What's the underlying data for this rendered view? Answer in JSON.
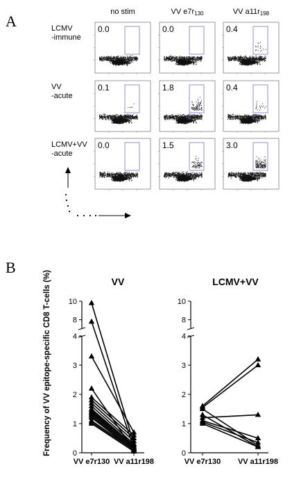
{
  "panel_a_letter": "A",
  "panel_b_letter": "B",
  "panel_a": {
    "columns": [
      {
        "text": "no stim",
        "sub": ""
      },
      {
        "text": "VV e7r",
        "sub": "130"
      },
      {
        "text": "VV a11r",
        "sub": "198"
      }
    ],
    "rows": [
      {
        "label_lines": [
          "LCMV",
          "-immune"
        ],
        "values": [
          "0.0",
          "0.0",
          "0.4"
        ]
      },
      {
        "label_lines": [
          "VV",
          "-acute"
        ],
        "values": [
          "0.1",
          "1.8",
          "0.4"
        ]
      },
      {
        "label_lines": [
          "LCMV+VV",
          "-acute"
        ],
        "values": [
          "0.0",
          "1.5",
          "3.0"
        ]
      }
    ],
    "gate_color": "#7b72c4"
  },
  "chart_data": [
    {
      "type": "line",
      "title": "VV",
      "ylabel": "Frequency of VV epitope-specific CD8 T-cells (%)",
      "categories": [
        "VV e7r130",
        "VV a11r198"
      ],
      "ylim": [
        0,
        10
      ],
      "yticks_lower": [
        0,
        1,
        2,
        3,
        4
      ],
      "yticks_upper": [
        8,
        10
      ],
      "axis_break": [
        4,
        7
      ],
      "marker": "triangle",
      "pairs": [
        [
          9.8,
          0.3
        ],
        [
          7.8,
          0.15
        ],
        [
          3.3,
          0.7
        ],
        [
          2.2,
          0.1
        ],
        [
          1.9,
          0.6
        ],
        [
          1.8,
          0.5
        ],
        [
          1.7,
          0.4
        ],
        [
          1.6,
          0.3
        ],
        [
          1.5,
          0.25
        ],
        [
          1.45,
          0.2
        ],
        [
          1.4,
          0.2
        ],
        [
          1.35,
          0.15
        ],
        [
          1.3,
          0.15
        ],
        [
          1.25,
          0.1
        ],
        [
          1.2,
          0.1
        ],
        [
          1.1,
          0.1
        ],
        [
          1.05,
          0.05
        ],
        [
          1.0,
          0.05
        ]
      ]
    },
    {
      "type": "line",
      "title": "LCMV+VV",
      "ylabel": "",
      "categories": [
        "VV e7r130",
        "VV a11r198"
      ],
      "ylim": [
        0,
        10
      ],
      "yticks_lower": [
        0,
        1,
        2,
        3,
        4
      ],
      "yticks_upper": [
        8,
        10
      ],
      "axis_break": [
        4,
        7
      ],
      "marker": "triangle",
      "pairs": [
        [
          1.6,
          3.2
        ],
        [
          1.55,
          3.0
        ],
        [
          1.5,
          0.25
        ],
        [
          1.3,
          0.2
        ],
        [
          1.2,
          1.3
        ],
        [
          1.1,
          0.5
        ],
        [
          1.05,
          0.35
        ],
        [
          1.0,
          0.2
        ]
      ]
    }
  ]
}
